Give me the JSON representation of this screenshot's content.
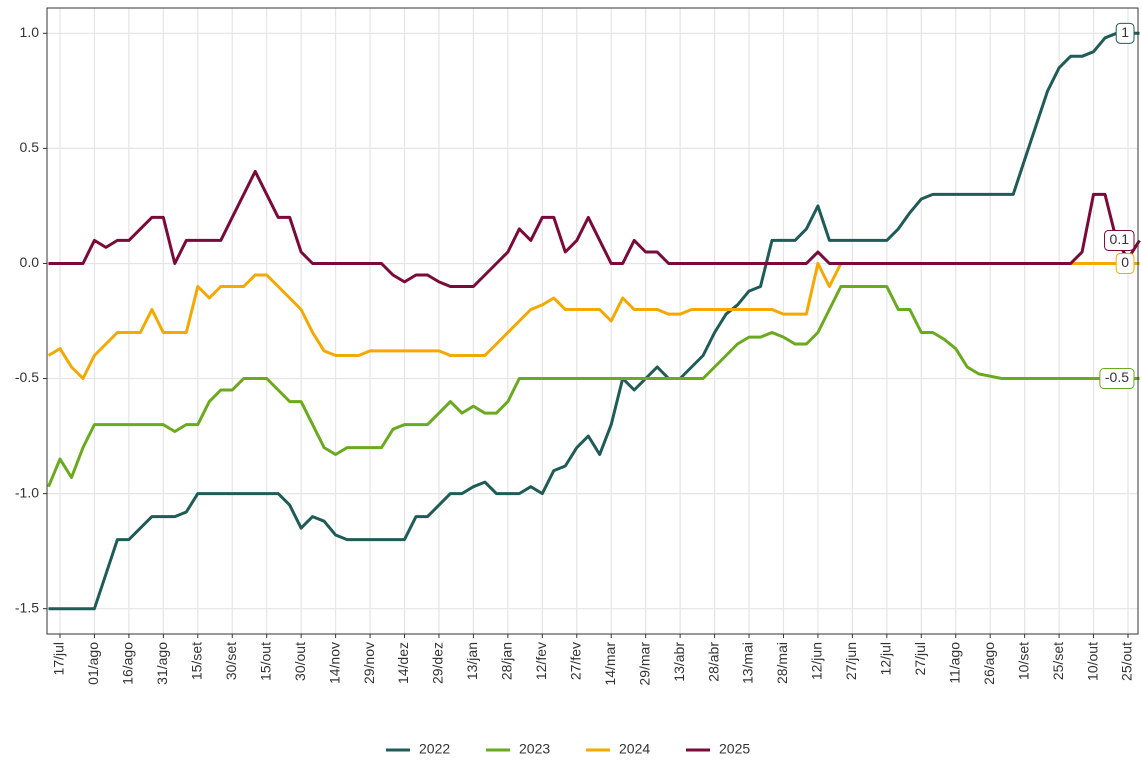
{
  "chart_data": {
    "type": "line",
    "x": [
      null,
      "17/jul",
      null,
      null,
      "01/ago",
      null,
      null,
      "16/ago",
      null,
      null,
      "31/ago",
      null,
      null,
      "15/set",
      null,
      null,
      "30/set",
      null,
      null,
      "15/out",
      null,
      null,
      "30/out",
      null,
      null,
      "14/nov",
      null,
      null,
      "29/nov",
      null,
      null,
      "14/dez",
      null,
      null,
      "29/dez",
      null,
      null,
      "13/jan",
      null,
      null,
      "28/jan",
      null,
      null,
      "12/fev",
      null,
      null,
      "27/fev",
      null,
      null,
      "14/mar",
      null,
      null,
      "29/mar",
      null,
      null,
      "13/abr",
      null,
      null,
      "28/abr",
      null,
      null,
      "13/mai",
      null,
      null,
      "28/mai",
      null,
      null,
      "12/jun",
      null,
      null,
      "27/jun",
      null,
      null,
      "12/jul",
      null,
      null,
      "27/jul",
      null,
      null,
      "11/ago",
      null,
      null,
      "26/ago",
      null,
      null,
      "10/set",
      null,
      null,
      "25/set",
      null,
      null,
      "10/out",
      null,
      null,
      "25/out",
      null
    ],
    "series": [
      {
        "name": "2022",
        "color": "#1f5c58",
        "values": [
          -1.5,
          -1.5,
          -1.5,
          -1.5,
          -1.5,
          -1.35,
          -1.2,
          -1.2,
          -1.15,
          -1.1,
          -1.1,
          -1.1,
          -1.08,
          -1.0,
          -1.0,
          -1.0,
          -1.0,
          -1.0,
          -1.0,
          -1.0,
          -1.0,
          -1.05,
          -1.15,
          -1.1,
          -1.12,
          -1.18,
          -1.2,
          -1.2,
          -1.2,
          -1.2,
          -1.2,
          -1.2,
          -1.1,
          -1.1,
          -1.05,
          -1.0,
          -1.0,
          -0.97,
          -0.95,
          -1.0,
          -1.0,
          -1.0,
          -0.97,
          -1.0,
          -0.9,
          -0.88,
          -0.8,
          -0.75,
          -0.83,
          -0.7,
          -0.5,
          -0.55,
          -0.5,
          -0.45,
          -0.5,
          -0.5,
          -0.45,
          -0.4,
          -0.3,
          -0.22,
          -0.18,
          -0.12,
          -0.1,
          0.1,
          0.1,
          0.1,
          0.15,
          0.25,
          0.1,
          0.1,
          0.1,
          0.1,
          0.1,
          0.1,
          0.15,
          0.22,
          0.28,
          0.3,
          0.3,
          0.3,
          0.3,
          0.3,
          0.3,
          0.3,
          0.3,
          0.45,
          0.6,
          0.75,
          0.85,
          0.9,
          0.9,
          0.92,
          0.98,
          1.0,
          1.0,
          1.0
        ]
      },
      {
        "name": "2023",
        "color": "#6aaa1e",
        "values": [
          -0.97,
          -0.85,
          -0.93,
          -0.8,
          -0.7,
          -0.7,
          -0.7,
          -0.7,
          -0.7,
          -0.7,
          -0.7,
          -0.73,
          -0.7,
          -0.7,
          -0.6,
          -0.55,
          -0.55,
          -0.5,
          -0.5,
          -0.5,
          -0.55,
          -0.6,
          -0.6,
          -0.7,
          -0.8,
          -0.83,
          -0.8,
          -0.8,
          -0.8,
          -0.8,
          -0.72,
          -0.7,
          -0.7,
          -0.7,
          -0.65,
          -0.6,
          -0.65,
          -0.62,
          -0.65,
          -0.65,
          -0.6,
          -0.5,
          -0.5,
          -0.5,
          -0.5,
          -0.5,
          -0.5,
          -0.5,
          -0.5,
          -0.5,
          -0.5,
          -0.5,
          -0.5,
          -0.5,
          -0.5,
          -0.5,
          -0.5,
          -0.5,
          -0.45,
          -0.4,
          -0.35,
          -0.32,
          -0.32,
          -0.3,
          -0.32,
          -0.35,
          -0.35,
          -0.3,
          -0.2,
          -0.1,
          -0.1,
          -0.1,
          -0.1,
          -0.1,
          -0.2,
          -0.2,
          -0.3,
          -0.3,
          -0.33,
          -0.37,
          -0.45,
          -0.48,
          -0.49,
          -0.5,
          -0.5,
          -0.5,
          -0.5,
          -0.5,
          -0.5,
          -0.5,
          -0.5,
          -0.5,
          -0.5,
          -0.5,
          -0.5,
          -0.5
        ]
      },
      {
        "name": "2024",
        "color": "#f5a800",
        "values": [
          -0.4,
          -0.37,
          -0.45,
          -0.5,
          -0.4,
          -0.35,
          -0.3,
          -0.3,
          -0.3,
          -0.2,
          -0.3,
          -0.3,
          -0.3,
          -0.1,
          -0.15,
          -0.1,
          -0.1,
          -0.1,
          -0.05,
          -0.05,
          -0.1,
          -0.15,
          -0.2,
          -0.3,
          -0.38,
          -0.4,
          -0.4,
          -0.4,
          -0.38,
          -0.38,
          -0.38,
          -0.38,
          -0.38,
          -0.38,
          -0.38,
          -0.4,
          -0.4,
          -0.4,
          -0.4,
          -0.35,
          -0.3,
          -0.25,
          -0.2,
          -0.18,
          -0.15,
          -0.2,
          -0.2,
          -0.2,
          -0.2,
          -0.25,
          -0.15,
          -0.2,
          -0.2,
          -0.2,
          -0.22,
          -0.22,
          -0.2,
          -0.2,
          -0.2,
          -0.2,
          -0.2,
          -0.2,
          -0.2,
          -0.2,
          -0.22,
          -0.22,
          -0.22,
          0,
          -0.1,
          0,
          0,
          0,
          0,
          0,
          0,
          0,
          0,
          0,
          0,
          0,
          0,
          0,
          0,
          0,
          0,
          0,
          0,
          0,
          0,
          0,
          0,
          0,
          0,
          0,
          0,
          0
        ]
      },
      {
        "name": "2025",
        "color": "#7b0a3a",
        "values": [
          0,
          0,
          0,
          0,
          0.1,
          0.07,
          0.1,
          0.1,
          0.15,
          0.2,
          0.2,
          0,
          0.1,
          0.1,
          0.1,
          0.1,
          0.2,
          0.3,
          0.4,
          0.3,
          0.2,
          0.2,
          0.05,
          0,
          0,
          0,
          0,
          0,
          0,
          0,
          -0.05,
          -0.08,
          -0.05,
          -0.05,
          -0.08,
          -0.1,
          -0.1,
          -0.1,
          -0.05,
          0,
          0.05,
          0.15,
          0.1,
          0.2,
          0.2,
          0.05,
          0.1,
          0.2,
          0.1,
          0,
          0,
          0.1,
          0.05,
          0.05,
          0,
          0,
          0,
          0,
          0,
          0,
          0,
          0,
          0,
          0,
          0,
          0,
          0,
          0.05,
          0,
          0,
          0,
          0,
          0,
          0,
          0,
          0,
          0,
          0,
          0,
          0,
          0,
          0,
          0,
          0,
          0,
          0,
          0,
          0,
          0,
          0,
          0.05,
          0.3,
          0.3,
          0.1,
          0.02,
          0.1
        ]
      }
    ],
    "ylim": [
      -1.61,
      1.11
    ],
    "yticks": [
      -1.5,
      {
        "value": -1,
        "label": "-1.0"
      },
      -0.5,
      {
        "value": 0,
        "label": "0.0"
      },
      0.5,
      {
        "value": 1,
        "label": "1.0"
      }
    ],
    "grid": true,
    "legend": "bottom"
  }
}
